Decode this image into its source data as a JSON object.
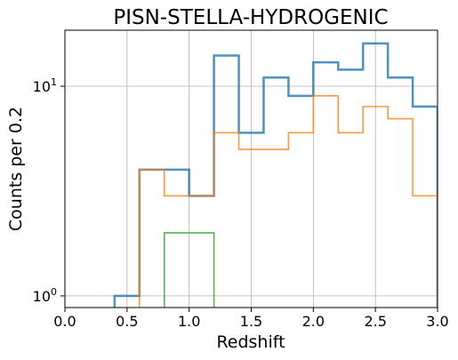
{
  "chart_data": {
    "type": "histogram-step",
    "title": "PISN-STELLA-HYDROGENIC",
    "xlabel": "Redshift",
    "ylabel": "Counts per 0.2",
    "xlim": [
      0.0,
      3.0
    ],
    "ylim": [
      0.88,
      18.5
    ],
    "yscale": "log",
    "grid": true,
    "legend": "none",
    "bin_edges": [
      0.4,
      0.6,
      0.8,
      1.0,
      1.2,
      1.4,
      1.6,
      1.8,
      2.0,
      2.2,
      2.4,
      2.6,
      2.8,
      3.0
    ],
    "x_ticks": [
      {
        "value": 0.0,
        "label": "0.0"
      },
      {
        "value": 0.5,
        "label": "0.5"
      },
      {
        "value": 1.0,
        "label": "1.0"
      },
      {
        "value": 1.5,
        "label": "1.5"
      },
      {
        "value": 2.0,
        "label": "2.0"
      },
      {
        "value": 2.5,
        "label": "2.5"
      },
      {
        "value": 3.0,
        "label": "3.0"
      }
    ],
    "y_ticks": [
      {
        "value": 1,
        "base": "10",
        "exp": "0"
      },
      {
        "value": 10,
        "base": "10",
        "exp": "1"
      }
    ],
    "series": [
      {
        "color": "#1f77b4",
        "counts": [
          1,
          4,
          4,
          3,
          14,
          6,
          11,
          9,
          13,
          12,
          16,
          11,
          8
        ]
      },
      {
        "color": "#ff7f0e",
        "counts": [
          0,
          4,
          3,
          3,
          6,
          5,
          5,
          6,
          9,
          6,
          8,
          7,
          3
        ]
      },
      {
        "color": "#2ca02c",
        "counts": [
          0,
          0,
          2,
          2,
          0,
          0,
          0,
          0,
          0,
          0,
          0,
          0,
          0
        ]
      }
    ]
  }
}
